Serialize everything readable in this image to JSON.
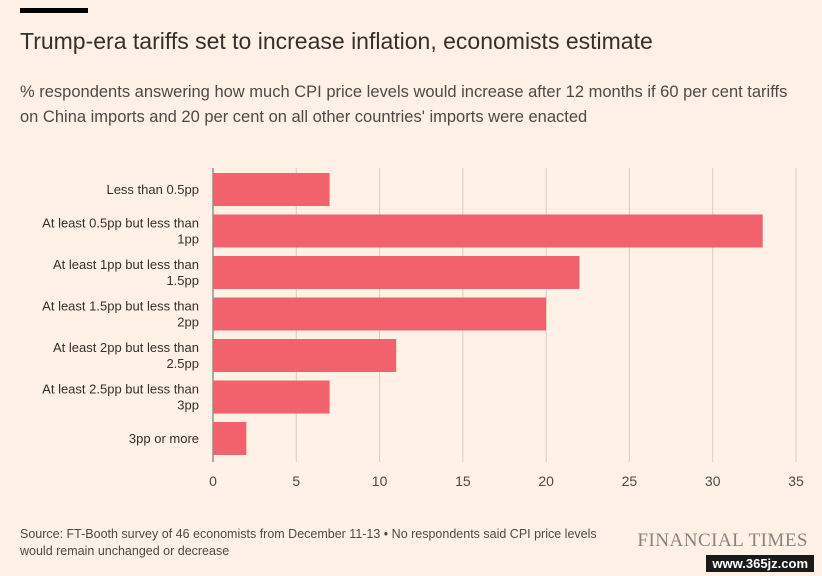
{
  "header": {
    "title": "Trump-era tariffs set to increase inflation, economists estimate",
    "subtitle": "% respondents answering how much CPI price levels would increase after 12 months if 60 per cent tariffs on China imports and 20 per cent on all other countries' imports were enacted"
  },
  "chart_data": {
    "type": "bar",
    "orientation": "horizontal",
    "categories": [
      [
        "Less than 0.5pp"
      ],
      [
        "At least 0.5pp but less than",
        "1pp"
      ],
      [
        "At least 1pp but less than",
        "1.5pp"
      ],
      [
        "At least 1.5pp but less than",
        "2pp"
      ],
      [
        "At least 2pp but less than",
        "2.5pp"
      ],
      [
        "At least 2.5pp but less than",
        "3pp"
      ],
      [
        "3pp or more"
      ]
    ],
    "values": [
      7,
      33,
      22,
      20,
      11,
      7,
      2
    ],
    "xticks": [
      0,
      5,
      10,
      15,
      20,
      25,
      30,
      35
    ],
    "xlim": [
      0,
      35
    ],
    "xlabel": "",
    "ylabel": "",
    "grid": true,
    "bar_color": "#f2626c",
    "grid_color": "#d9ccc1"
  },
  "footer": {
    "source": "Source: FT-Booth survey of 46 economists from December 11-13 • No respondents said CPI price levels would remain unchanged or decrease",
    "brand": "FINANCIAL TIMES",
    "watermark": "www.365jz.com"
  }
}
